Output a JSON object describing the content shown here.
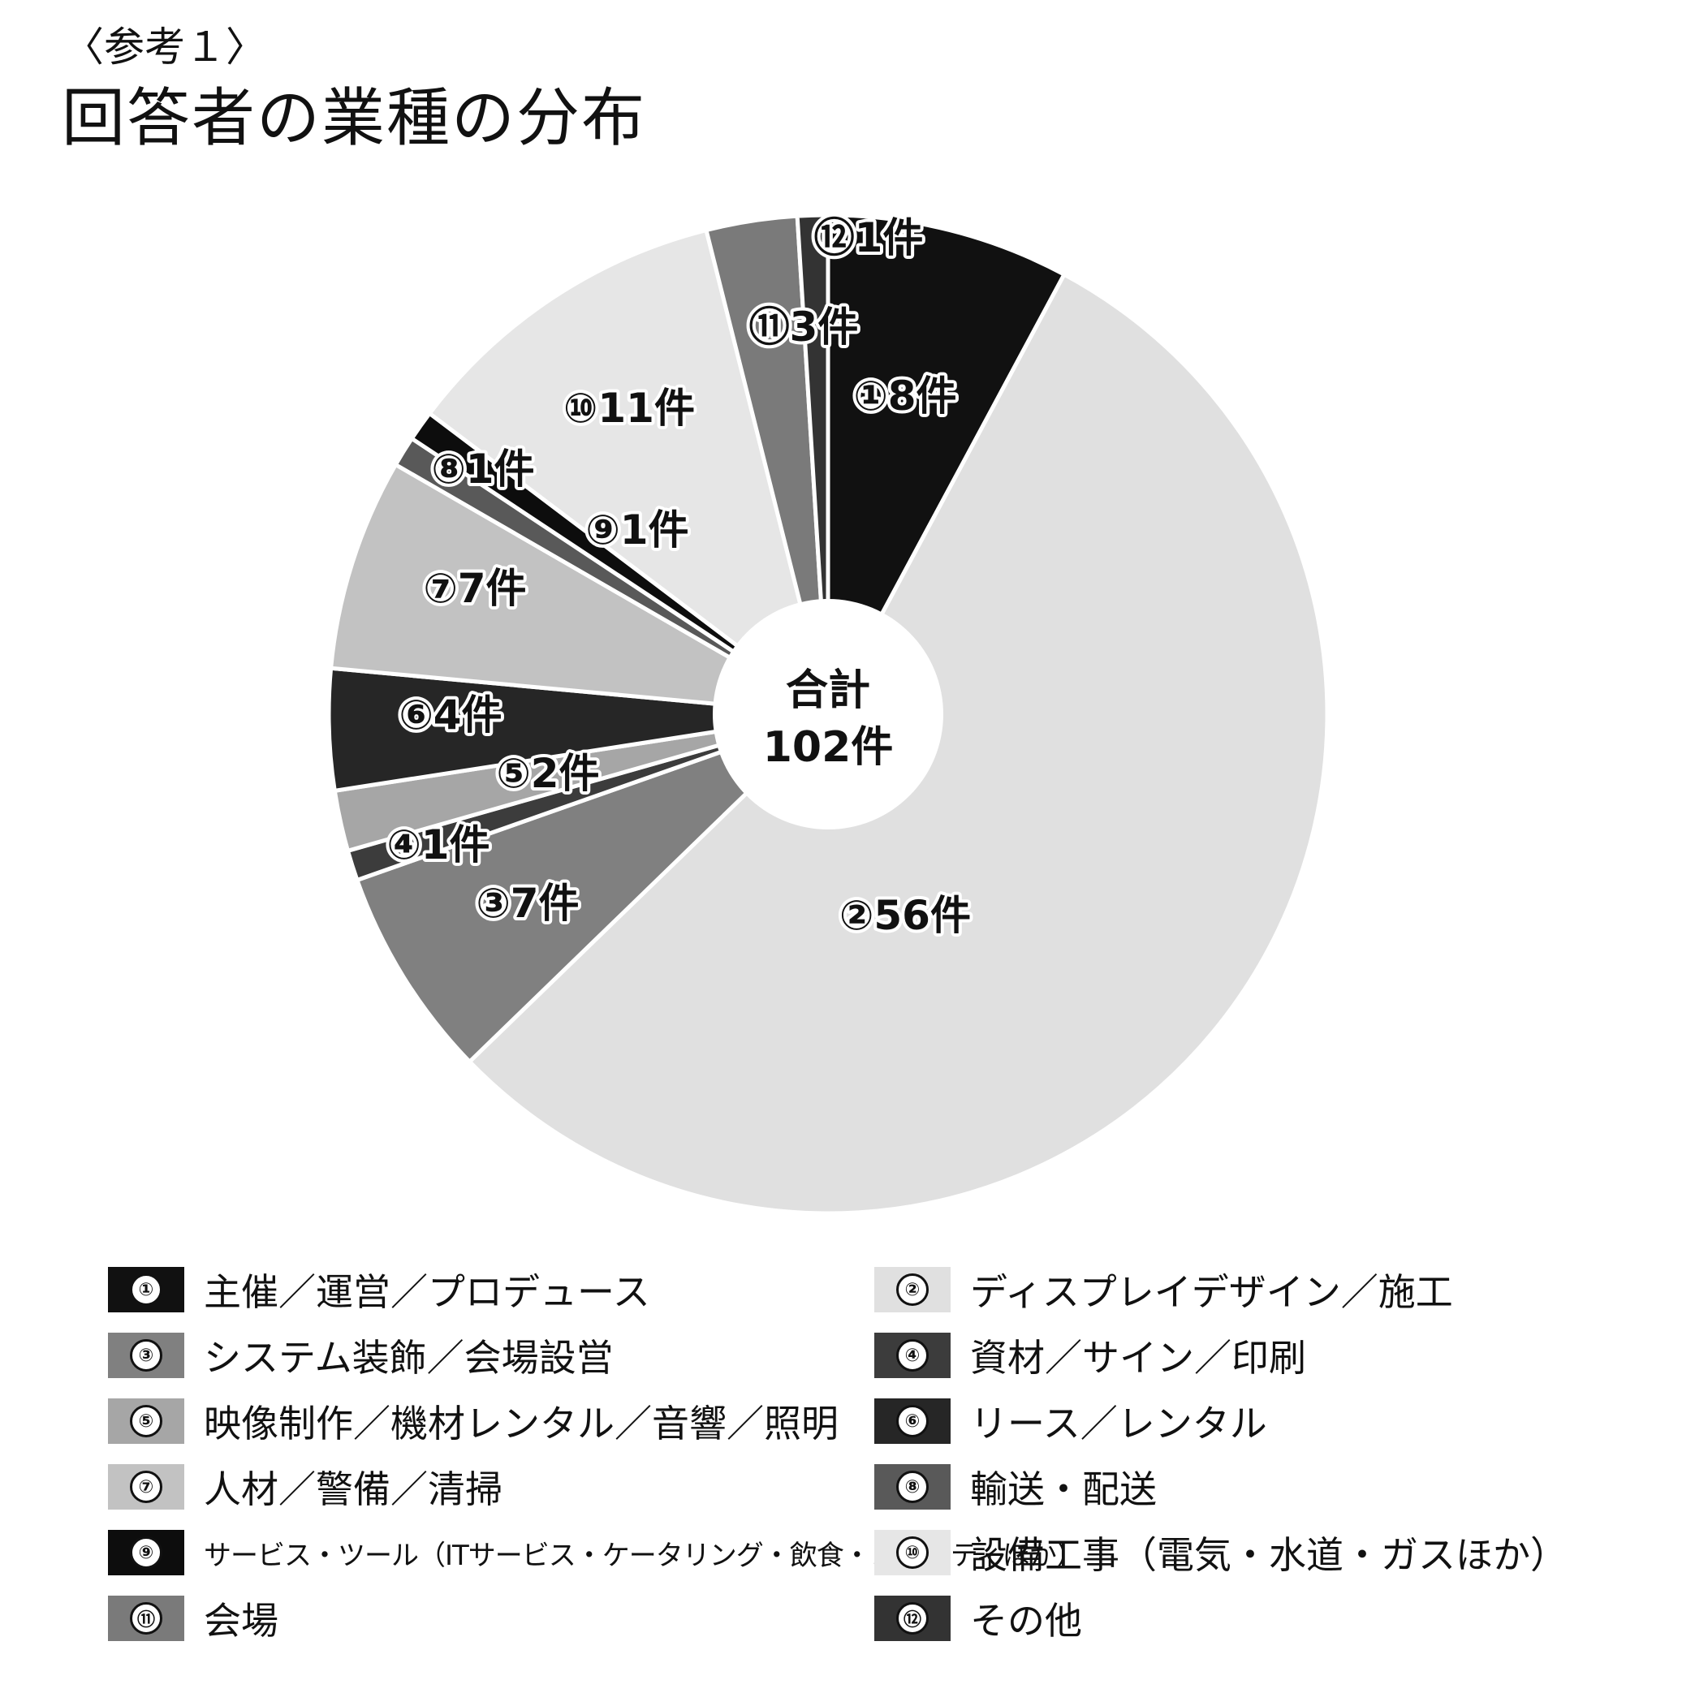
{
  "header": {
    "subtitle": "〈参考１〉",
    "title": "回答者の業種の分布"
  },
  "chart_data": {
    "type": "pie",
    "title": "回答者の業種の分布",
    "center_label": {
      "line1": "合計",
      "line2": "102件"
    },
    "total": 102,
    "unit": "件",
    "slices": [
      {
        "num": "①",
        "label": "主催／運営／プロデュース",
        "value": 8,
        "color": "#111111"
      },
      {
        "num": "②",
        "label": "ディスプレイデザイン／施工",
        "value": 56,
        "color": "#e0e0e0"
      },
      {
        "num": "③",
        "label": "システム装飾／会場設営",
        "value": 7,
        "color": "#808080"
      },
      {
        "num": "④",
        "label": "資材／サイン／印刷",
        "value": 1,
        "color": "#3c3c3c"
      },
      {
        "num": "⑤",
        "label": "映像制作／機材レンタル／音響／照明",
        "value": 2,
        "color": "#a6a6a6"
      },
      {
        "num": "⑥",
        "label": "リース／レンタル",
        "value": 4,
        "color": "#262626"
      },
      {
        "num": "⑦",
        "label": "人材／警備／清掃",
        "value": 7,
        "color": "#c2c2c2"
      },
      {
        "num": "⑧",
        "label": "輸送・配送",
        "value": 1,
        "color": "#595959"
      },
      {
        "num": "⑨",
        "label": "サービス・ツール（ITサービス・ケータリング・飲食・ノベルティほか）",
        "value": 1,
        "color": "#0d0d0d"
      },
      {
        "num": "⑩",
        "label": "設備工事（電気・水道・ガスほか）",
        "value": 11,
        "color": "#e6e6e6"
      },
      {
        "num": "⑪",
        "label": "会場",
        "value": 3,
        "color": "#7a7a7a"
      },
      {
        "num": "⑫",
        "label": "その他",
        "value": 1,
        "color": "#333333"
      }
    ],
    "slice_labels": [
      "①8件",
      "②56件",
      "③7件",
      "④1件",
      "⑤2件",
      "⑥4件",
      "⑦7件",
      "⑧1件",
      "⑨1件",
      "⑩11件",
      "⑪3件",
      "⑫1件"
    ],
    "legend_placement": "bottom"
  }
}
